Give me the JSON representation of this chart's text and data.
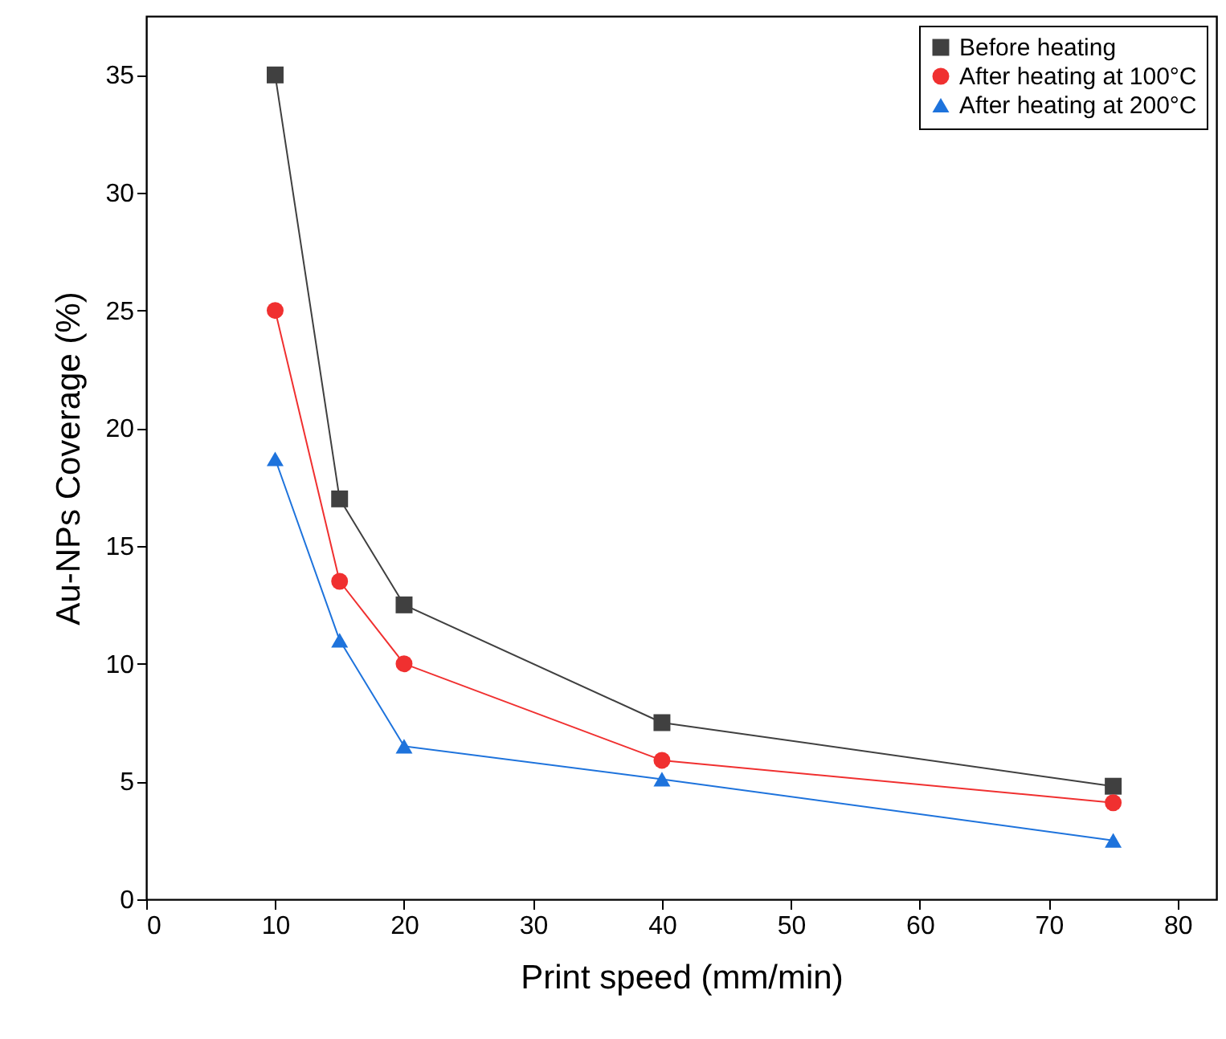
{
  "chart_data": {
    "type": "line",
    "xlabel": "Print speed (mm/min)",
    "ylabel": "Au-NPs Coverage (%)",
    "x": [
      10,
      15,
      20,
      40,
      75
    ],
    "xlim": [
      0,
      83
    ],
    "xticks": [
      0,
      10,
      20,
      30,
      40,
      50,
      60,
      70,
      80
    ],
    "ylim": [
      0,
      37.5
    ],
    "yticks": [
      0,
      5,
      10,
      15,
      20,
      25,
      30,
      35
    ],
    "grid": false,
    "legend": "top right",
    "line_style": "solid",
    "series": [
      {
        "name": "Before heating",
        "color": "#404040",
        "marker": "square",
        "values": [
          35,
          17,
          12.5,
          7.5,
          4.8
        ]
      },
      {
        "name": "After heating at 100°C",
        "color": "#f03030",
        "marker": "circle",
        "values": [
          25,
          13.5,
          10,
          5.9,
          4.1
        ]
      },
      {
        "name": "After heating at 200°C",
        "color": "#1e73dc",
        "marker": "triangle",
        "values": [
          18.7,
          11,
          6.5,
          5.1,
          2.5
        ]
      }
    ]
  }
}
